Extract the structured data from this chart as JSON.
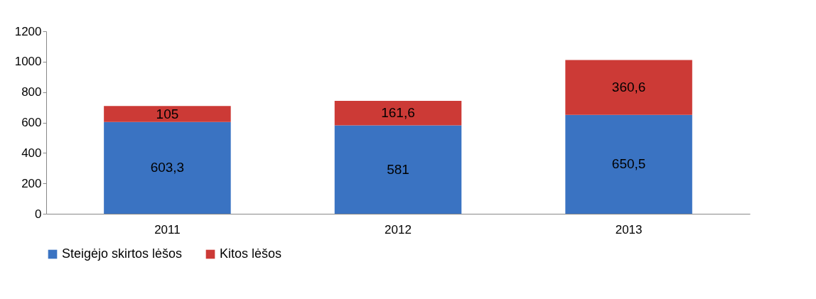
{
  "chart_data": {
    "type": "bar",
    "stacked": true,
    "categories": [
      "2011",
      "2012",
      "2013"
    ],
    "series": [
      {
        "name": "Steigėjo skirtos lėšos",
        "color": "#3a73c2",
        "values": [
          603.3,
          581,
          650.5
        ],
        "value_labels": [
          "603,3",
          "581",
          "650,5"
        ]
      },
      {
        "name": "Kitos lėšos",
        "color": "#cc3a36",
        "values": [
          105,
          161.6,
          360.6
        ],
        "value_labels": [
          "105",
          "161,6",
          "360,6"
        ]
      }
    ],
    "ylim": [
      0,
      1200
    ],
    "yticks": [
      0,
      200,
      400,
      600,
      800,
      1000,
      1200
    ],
    "grid": false,
    "legend": "bottom"
  }
}
